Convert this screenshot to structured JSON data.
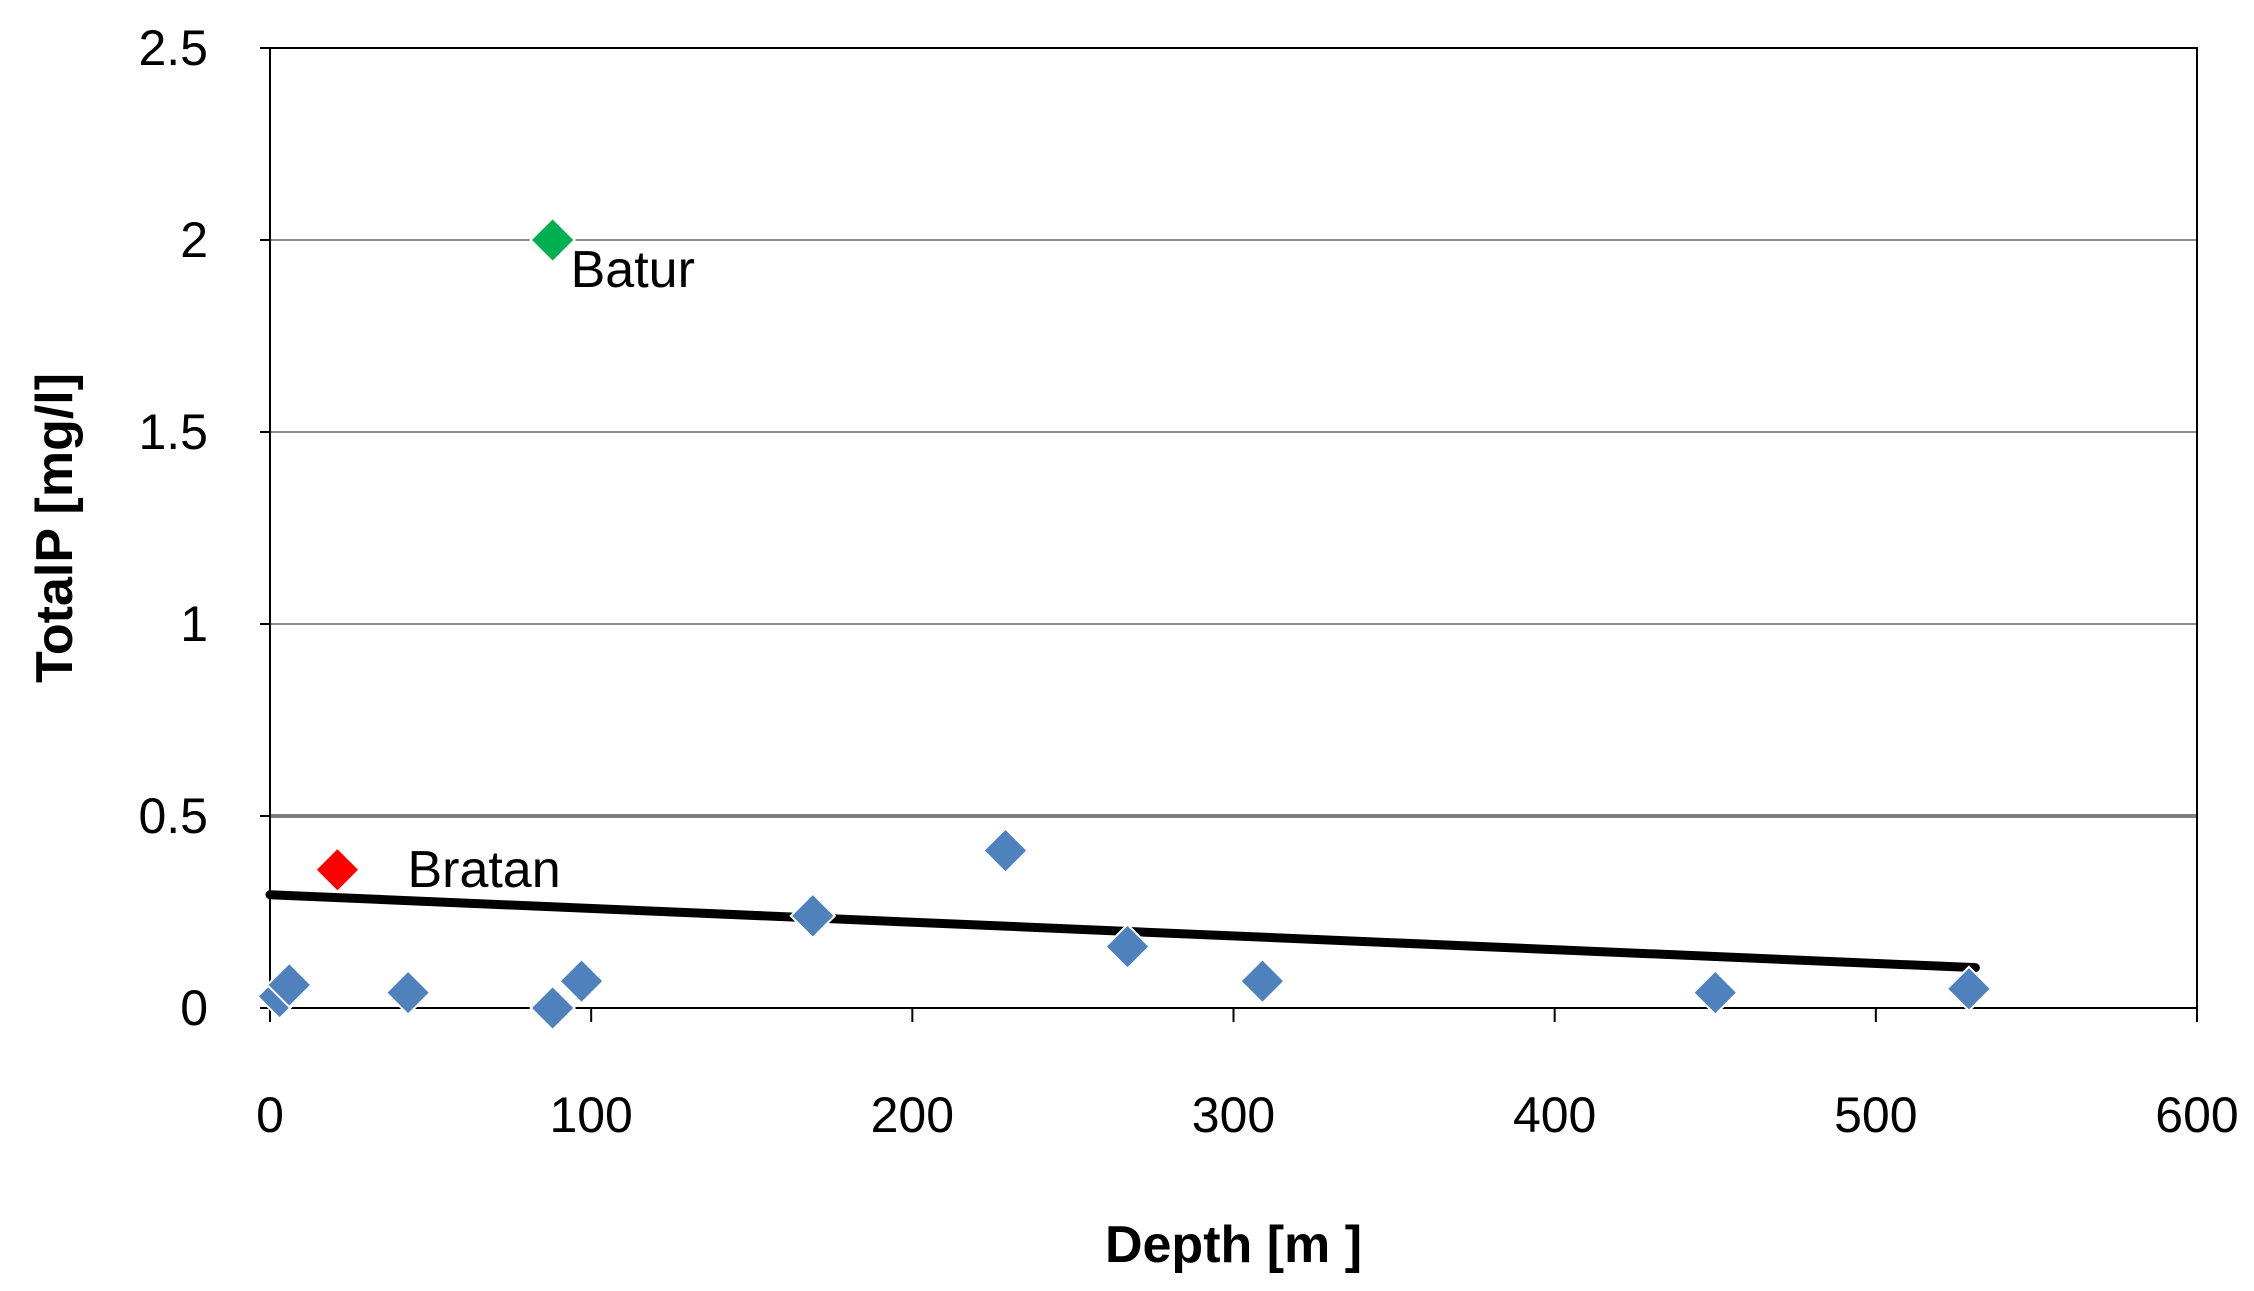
{
  "chart_data": {
    "type": "scatter",
    "title": "",
    "xlabel": "Depth [m ]",
    "ylabel": "TotalP [mg/l]",
    "xlim": [
      0,
      600
    ],
    "ylim": [
      0,
      2.5
    ],
    "x_ticks": [
      "0",
      "100",
      "200",
      "300",
      "400",
      "500",
      "600"
    ],
    "y_ticks": [
      "0",
      "0.5",
      "1",
      "1.5",
      "2",
      "2.5"
    ],
    "x_tick_values": [
      0,
      100,
      200,
      300,
      400,
      500,
      600
    ],
    "y_tick_values": [
      0,
      0.5,
      1,
      1.5,
      2,
      2.5
    ],
    "grid": "horizontal",
    "legend": "none",
    "series": [
      {
        "color": "#4F81BD",
        "marker": "diamond",
        "points": [
          {
            "x": 3,
            "y": 0.03
          },
          {
            "x": 6,
            "y": 0.06
          },
          {
            "x": 43,
            "y": 0.04
          },
          {
            "x": 88,
            "y": 0.0
          },
          {
            "x": 97,
            "y": 0.07
          },
          {
            "x": 169,
            "y": 0.24
          },
          {
            "x": 229,
            "y": 0.41
          },
          {
            "x": 267,
            "y": 0.16
          },
          {
            "x": 309,
            "y": 0.07
          },
          {
            "x": 450,
            "y": 0.04
          },
          {
            "x": 529,
            "y": 0.05
          }
        ]
      },
      {
        "color": "#00B050",
        "marker": "diamond",
        "points": [
          {
            "x": 88,
            "y": 2.0,
            "label": "Batur"
          }
        ]
      },
      {
        "color": "#FF0000",
        "marker": "diamond",
        "points": [
          {
            "x": 21,
            "y": 0.36,
            "label": "Bratan"
          }
        ]
      }
    ],
    "trendline": {
      "x": [
        0,
        531
      ],
      "y": [
        0.295,
        0.105
      ],
      "color": "#000000"
    },
    "reference_line": {
      "y": 0.5,
      "color": "#808080"
    }
  }
}
